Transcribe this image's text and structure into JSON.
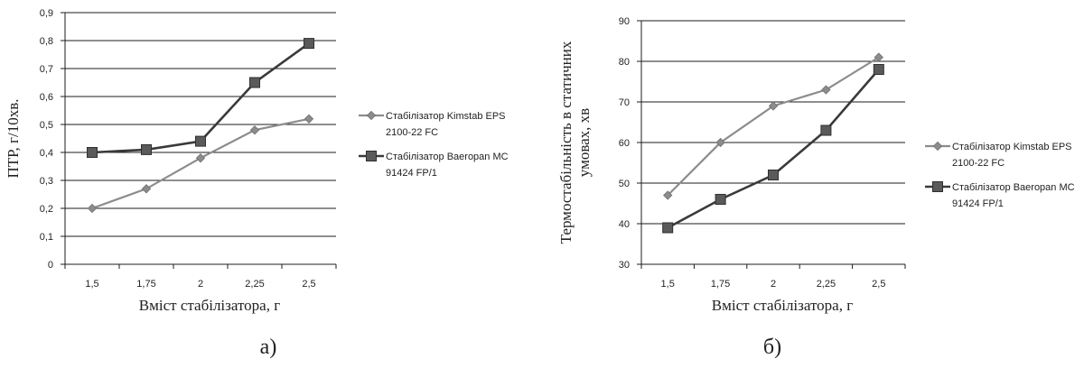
{
  "chart_data": [
    {
      "type": "line",
      "panel_label": "а)",
      "categories": [
        "1,5",
        "1,75",
        "2",
        "2,25",
        "2,5"
      ],
      "xlabel": "Вміст стабілізатора, г",
      "ylabel": "ПТР, г/10хв.",
      "ylim": [
        0,
        0.9
      ],
      "yticks": [
        "0",
        "0,1",
        "0,2",
        "0,3",
        "0,4",
        "0,5",
        "0,6",
        "0,7",
        "0,8",
        "0,9"
      ],
      "grid": true,
      "legend_position": "right",
      "series": [
        {
          "name": "Стабілізатор Kimstab EPS 2100-22 FC",
          "marker": "diamond",
          "color": "#8c8c8c",
          "values": [
            0.2,
            0.27,
            0.38,
            0.48,
            0.52
          ]
        },
        {
          "name": "Стабілізатор Baeropan MC 91424 FP/1",
          "marker": "square",
          "color": "#3a3a3a",
          "values": [
            0.4,
            0.41,
            0.44,
            0.65,
            0.79
          ]
        }
      ]
    },
    {
      "type": "line",
      "panel_label": "б)",
      "categories": [
        "1,5",
        "1,75",
        "2",
        "2,25",
        "2,5"
      ],
      "xlabel": "Вміст стабілізатора, г",
      "ylabel": "Термостабільність в статичних умовах, хв",
      "ylim": [
        30,
        90
      ],
      "yticks": [
        "30",
        "40",
        "50",
        "60",
        "70",
        "80",
        "90"
      ],
      "grid": true,
      "legend_position": "right",
      "series": [
        {
          "name": "Стабілізатор Kimstab EPS 2100-22 FC",
          "marker": "diamond",
          "color": "#8c8c8c",
          "values": [
            47,
            60,
            69,
            73,
            81
          ]
        },
        {
          "name": "Стабілізатор Baeropan MC 91424 FP/1",
          "marker": "square",
          "color": "#3a3a3a",
          "values": [
            39,
            46,
            52,
            63,
            78
          ]
        }
      ]
    }
  ]
}
